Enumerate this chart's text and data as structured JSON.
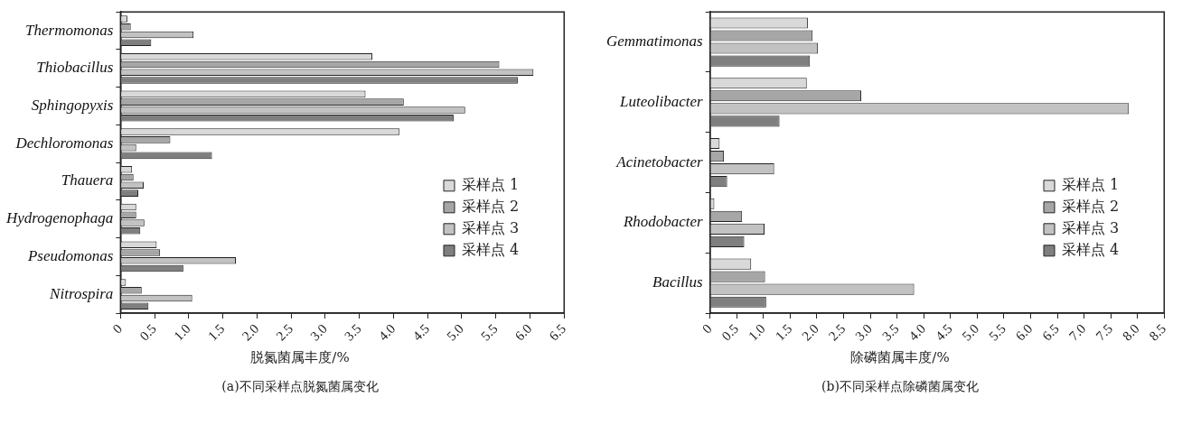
{
  "chart_data": [
    {
      "type": "bar",
      "orientation": "horizontal",
      "categories": [
        "Thermomonas",
        "Thiobacillus",
        "Sphingopyxis",
        "Dechloromonas",
        "Thauera",
        "Hydrogenophaga",
        "Pseudomonas",
        "Nitrospira"
      ],
      "series": [
        {
          "name": "采样点 1",
          "color": "#d9d9d9",
          "values": [
            0.1,
            3.69,
            3.59,
            4.09,
            0.17,
            0.23,
            0.53,
            0.08
          ]
        },
        {
          "name": "采样点 2",
          "color": "#a6a6a6",
          "values": [
            0.15,
            5.55,
            4.15,
            0.73,
            0.19,
            0.23,
            0.58,
            0.31
          ]
        },
        {
          "name": "采样点 3",
          "color": "#c2c2c2",
          "values": [
            1.07,
            6.05,
            5.05,
            0.23,
            0.34,
            0.35,
            1.69,
            1.05
          ]
        },
        {
          "name": "采样点 4",
          "color": "#7f7f7f",
          "values": [
            0.45,
            5.82,
            4.88,
            1.34,
            0.26,
            0.29,
            0.92,
            0.41
          ]
        }
      ],
      "xlim": [
        0,
        6.5
      ],
      "xticks": [
        0,
        {
          "value": 0.5,
          "label": "0.5"
        },
        {
          "value": 1,
          "label": "1.0"
        },
        {
          "value": 1.5,
          "label": "1.5"
        },
        {
          "value": 2,
          "label": "2.0"
        },
        {
          "value": 2.5,
          "label": "2.5"
        },
        {
          "value": 3,
          "label": "3.0"
        },
        {
          "value": 3.5,
          "label": "3.5"
        },
        {
          "value": 4,
          "label": "4.0"
        },
        {
          "value": 4.5,
          "label": "4.5"
        },
        {
          "value": 5,
          "label": "5.0"
        },
        {
          "value": 5.5,
          "label": "5.5"
        },
        {
          "value": 6,
          "label": "6.0"
        },
        {
          "value": 6.5,
          "label": "6.5"
        }
      ],
      "xlabel": "脱氮菌属丰度/%",
      "annotations": [
        "(a)不同采样点脱氮菌属变化"
      ],
      "legend": "bottom right",
      "grid": false
    },
    {
      "type": "bar",
      "orientation": "horizontal",
      "categories": [
        "Gemmatimonas",
        "Luteolibacter",
        "Acinetobacter",
        "Rhodobacter",
        "Bacillus"
      ],
      "series": [
        {
          "name": "采样点 1",
          "color": "#d9d9d9",
          "values": [
            1.83,
            1.81,
            0.18,
            0.08,
            0.77
          ]
        },
        {
          "name": "采样点 2",
          "color": "#a6a6a6",
          "values": [
            1.92,
            2.83,
            0.26,
            0.6,
            1.03
          ]
        },
        {
          "name": "采样点 3",
          "color": "#c2c2c2",
          "values": [
            2.02,
            7.84,
            1.2,
            1.02,
            3.82
          ]
        },
        {
          "name": "采样点 4",
          "color": "#7f7f7f",
          "values": [
            1.87,
            1.3,
            0.32,
            0.64,
            1.05
          ]
        }
      ],
      "xlim": [
        0,
        8.5
      ],
      "xticks": [
        0,
        {
          "value": 0.5,
          "label": "0.5"
        },
        {
          "value": 1,
          "label": "1.0"
        },
        {
          "value": 1.5,
          "label": "1.5"
        },
        {
          "value": 2,
          "label": "2.0"
        },
        {
          "value": 2.5,
          "label": "2.5"
        },
        {
          "value": 3,
          "label": "3.0"
        },
        {
          "value": 3.5,
          "label": "3.5"
        },
        {
          "value": 4,
          "label": "4.0"
        },
        {
          "value": 4.5,
          "label": "4.5"
        },
        {
          "value": 5,
          "label": "5.0"
        },
        {
          "value": 5.5,
          "label": "5.5"
        },
        {
          "value": 6,
          "label": "6.0"
        },
        {
          "value": 6.5,
          "label": "6.5"
        },
        {
          "value": 7,
          "label": "7.0"
        },
        {
          "value": 7.5,
          "label": "7.5"
        },
        {
          "value": 8,
          "label": "8.0"
        },
        {
          "value": 8.5,
          "label": "8.5"
        }
      ],
      "xlabel": "除磷菌属丰度/%",
      "annotations": [
        "(b)不同采样点除磷菌属变化"
      ],
      "legend": "bottom right",
      "grid": false
    }
  ]
}
